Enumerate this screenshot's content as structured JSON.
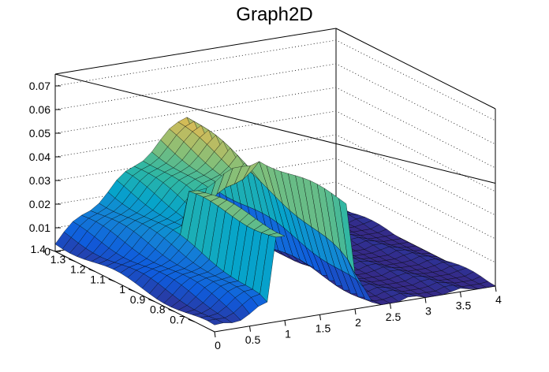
{
  "chart_data": {
    "type": "surface",
    "title": "Graph2D",
    "xlabel": "",
    "ylabel": "",
    "zlabel": "",
    "xlim": [
      0,
      4
    ],
    "ylim": [
      0.6,
      1.4
    ],
    "zlim": [
      0,
      0.075
    ],
    "x_ticks": [
      0,
      0.5,
      1,
      1.5,
      2,
      2.5,
      3,
      3.5,
      4
    ],
    "y_ticks": [
      0.7,
      0.8,
      0.9,
      1,
      1.1,
      1.2,
      1.3,
      1.4
    ],
    "z_ticks": [
      0,
      0.01,
      0.02,
      0.03,
      0.04,
      0.05,
      0.06,
      0.07
    ],
    "x_tick_labels": [
      "0",
      "0.5",
      "1",
      "1.5",
      "2",
      "2.5",
      "3",
      "3.5",
      "4"
    ],
    "y_tick_labels": [
      "0.7",
      "0.8",
      "0.9",
      "1",
      "1.1",
      "1.2",
      "1.3",
      "1.4"
    ],
    "z_tick_labels": [
      "0",
      "0.01",
      "0.02",
      "0.03",
      "0.04",
      "0.05",
      "0.06",
      "0.07"
    ],
    "grid": true,
    "colormap": "viridis-like (blue-green-yellow)",
    "gap_region": {
      "x_range": [
        1.0,
        1.9
      ],
      "y_range": [
        0.6,
        1.05
      ]
    },
    "ridge": {
      "description_values": [
        {
          "x": 0.0,
          "y": 1.4,
          "z": 0.004
        },
        {
          "x": 1.0,
          "y": 1.4,
          "z": 0.032
        },
        {
          "x": 1.9,
          "y": 1.4,
          "z": 0.049
        },
        {
          "x": 1.2,
          "y": 1.0,
          "z": 0.05
        },
        {
          "x": 1.85,
          "y": 1.0,
          "z": 0.062
        },
        {
          "x": 2.0,
          "y": 0.9,
          "z": 0.054
        },
        {
          "x": 3.0,
          "y": 1.0,
          "z": 0.0
        }
      ]
    }
  },
  "colors": {
    "axis": "#000000",
    "grid": "#000000",
    "background": "#ffffff",
    "mesh_line": "#000000",
    "palette": [
      "#352a87",
      "#0f5cdd",
      "#1481d6",
      "#06a4ca",
      "#2eb7a4",
      "#87bf77",
      "#d1bb59",
      "#fec832",
      "#f9fb0e"
    ]
  }
}
